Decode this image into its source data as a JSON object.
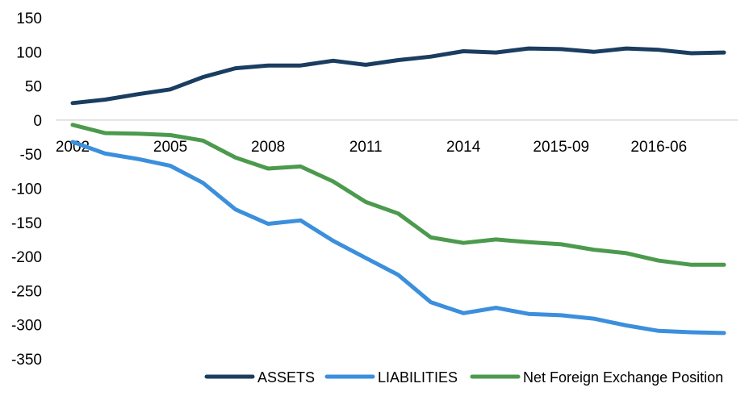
{
  "chart_data": {
    "type": "line",
    "title": "",
    "xlabel": "",
    "ylabel": "",
    "ylim": [
      -350,
      150
    ],
    "y_ticks": [
      150,
      100,
      50,
      0,
      -50,
      -100,
      -150,
      -200,
      -250,
      -300,
      -350
    ],
    "y_tick_labels": [
      "150",
      "100",
      "50",
      "0",
      "-50",
      "-100",
      "-150",
      "-200",
      "-250",
      "-300",
      "-350"
    ],
    "x_tick_labels": [
      "2002",
      "2005",
      "2008",
      "2011",
      "2014",
      "2015-09",
      "2016-06"
    ],
    "x_tick_indices": [
      0,
      3,
      6,
      9,
      12,
      15,
      18
    ],
    "grid": false,
    "legend_position": "bottom-right",
    "series": [
      {
        "name": "ASSETS",
        "color": "#1a3d60",
        "values": [
          25,
          30,
          38,
          45,
          63,
          76,
          80,
          80,
          87,
          81,
          88,
          93,
          101,
          99,
          105,
          104,
          100,
          105,
          103,
          98,
          99
        ]
      },
      {
        "name": "LIABILITIES",
        "color": "#3b8fdc",
        "values": [
          -32,
          -49,
          -57,
          -67,
          -92,
          -131,
          -152,
          -147,
          -177,
          -202,
          -227,
          -267,
          -283,
          -275,
          -284,
          -286,
          -291,
          -301,
          -309,
          -311,
          -312
        ]
      },
      {
        "name": "Net Foreign Exchange Position",
        "color": "#4c9a4d",
        "values": [
          -7,
          -19,
          -20,
          -22,
          -30,
          -55,
          -71,
          -68,
          -90,
          -120,
          -137,
          -172,
          -180,
          -175,
          -179,
          -182,
          -190,
          -195,
          -206,
          -212,
          -212
        ]
      }
    ]
  }
}
